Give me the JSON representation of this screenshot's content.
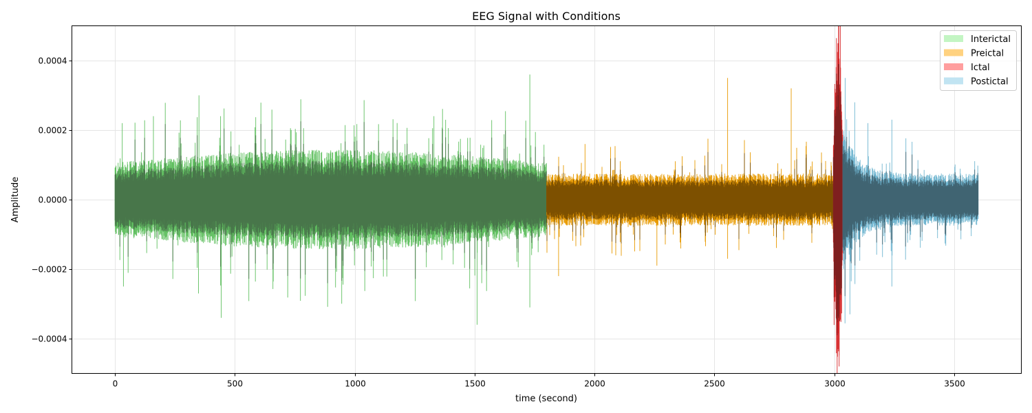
{
  "chart_data": {
    "type": "line",
    "title": "EEG Signal with Conditions",
    "xlabel": "time (second)",
    "ylabel": "Amplitude",
    "xlim": [
      -180,
      3780
    ],
    "ylim": [
      -0.0005,
      0.0005
    ],
    "xticks": [
      0,
      500,
      1000,
      1500,
      2000,
      2500,
      3000,
      3500
    ],
    "xtick_labels": [
      "0",
      "500",
      "1000",
      "1500",
      "2000",
      "2500",
      "3000",
      "3500"
    ],
    "yticks": [
      -0.0004,
      -0.0002,
      0,
      0.0002,
      0.0004
    ],
    "ytick_labels": [
      "−0.0004",
      "−0.0002",
      "0.0000",
      "0.0002",
      "0.0004"
    ],
    "grid": true,
    "legend_position": "top-right",
    "segments": [
      {
        "name": "Interictal",
        "start": 0,
        "end": 1800,
        "typical_amplitude": 0.0001,
        "line_color": "#5fbf5f",
        "body_color": "#48764a",
        "legend_color": "#c3f5c3"
      },
      {
        "name": "Preictal",
        "start": 1800,
        "end": 2996,
        "typical_amplitude": 6e-05,
        "line_color": "#e89a00",
        "body_color": "#7d5000",
        "legend_color": "#ffd280"
      },
      {
        "name": "Ictal",
        "start": 2996,
        "end": 3036,
        "typical_amplitude": 0.0003,
        "line_color": "#d62728",
        "body_color": "#7f1f1f",
        "legend_color": "#ff9e9e"
      },
      {
        "name": "Postictal",
        "start": 3036,
        "end": 3600,
        "typical_amplitude": 6e-05,
        "line_color": "#6fb5d0",
        "body_color": "#406472",
        "legend_color": "#c1e4f2"
      }
    ],
    "notable_spikes": [
      {
        "t": 30,
        "v": 0.00022
      },
      {
        "t": 35,
        "v": -0.00025
      },
      {
        "t": 160,
        "v": 0.00024
      },
      {
        "t": 350,
        "v": 0.0003
      },
      {
        "t": 348,
        "v": -0.00027
      },
      {
        "t": 443,
        "v": -0.00034
      },
      {
        "t": 440,
        "v": 0.00024
      },
      {
        "t": 1330,
        "v": 0.00024
      },
      {
        "t": 1510,
        "v": -0.00036
      },
      {
        "t": 1730,
        "v": 0.00036
      },
      {
        "t": 1730,
        "v": -0.00031
      },
      {
        "t": 1850,
        "v": -0.00022
      },
      {
        "t": 1960,
        "v": 0.00016
      },
      {
        "t": 2555,
        "v": 0.00035
      },
      {
        "t": 2555,
        "v": -0.00017
      },
      {
        "t": 2820,
        "v": 0.00032
      },
      {
        "t": 2260,
        "v": -0.00019
      },
      {
        "t": 3025,
        "v": 0.0005
      },
      {
        "t": 3020,
        "v": -0.00048
      },
      {
        "t": 3015,
        "v": 0.00045
      },
      {
        "t": 3045,
        "v": 0.00035
      },
      {
        "t": 3065,
        "v": -0.00033
      },
      {
        "t": 3085,
        "v": 0.00028
      },
      {
        "t": 3240,
        "v": 0.00023
      },
      {
        "t": 3240,
        "v": -0.00025
      },
      {
        "t": 3140,
        "v": 0.00022
      }
    ]
  }
}
